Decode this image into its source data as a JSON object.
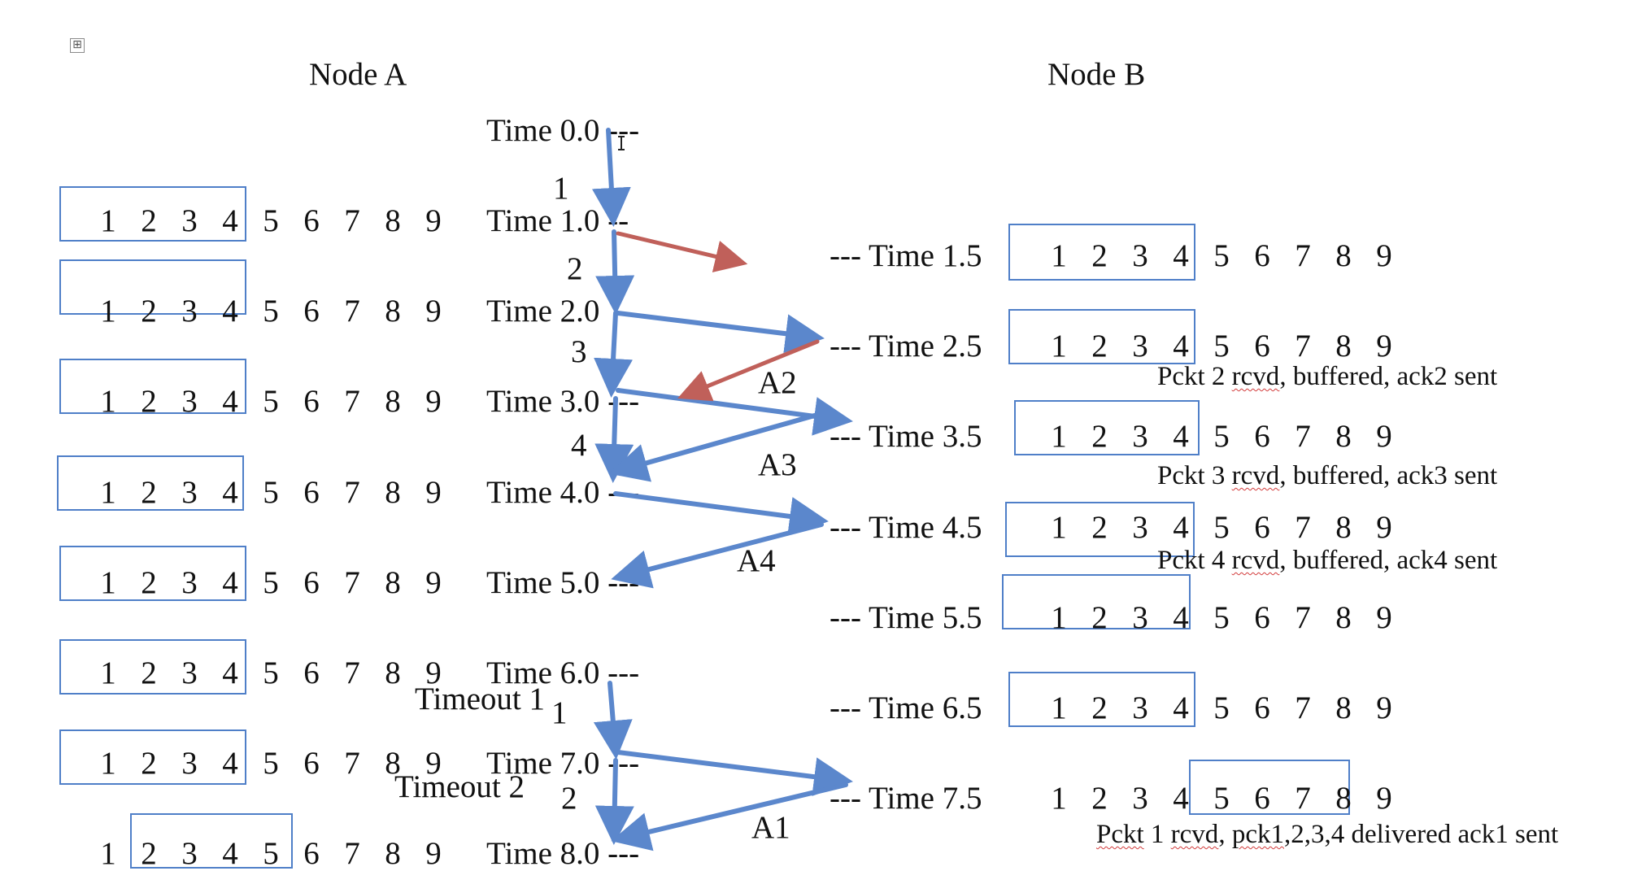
{
  "nodes": {
    "a": "Node A",
    "b": "Node B"
  },
  "expand_icon": "⊞",
  "numbers": [
    "1",
    "2",
    "3",
    "4",
    "5",
    "6",
    "7",
    "8",
    "9"
  ],
  "time_a": [
    "Time 0.0 ---",
    "Time 1.0 --",
    "Time 2.0",
    "Time 3.0 ---",
    "Time 4.0 ---",
    "Time 5.0 ---",
    "Time 6.0 ---",
    "Time 7.0 ---",
    "Time 8.0 ---"
  ],
  "time_b": [
    "--- Time 1.5",
    "--- Time 2.5",
    "--- Time 3.5",
    "--- Time 4.5",
    "--- Time 5.5",
    "--- Time 6.5",
    "--- Time 7.5"
  ],
  "packet_labels": [
    "1",
    "2",
    "3",
    "4",
    "1",
    "2"
  ],
  "ack_labels": [
    "A2",
    "A3",
    "A4",
    "A1"
  ],
  "timeouts": [
    "Timeout 1",
    "Timeout 2"
  ],
  "notes": {
    "n1_pre": "Pckt 2 ",
    "n1_s": "rcvd",
    "n1_post": ", buffered, ack2 sent",
    "n2_pre": "Pckt 3 ",
    "n2_s": "rcvd",
    "n2_post": ", buffered, ack3 sent",
    "n3_pre": "Pckt 4 ",
    "n3_s": "rcvd",
    "n3_post": ", buffered, ack4 sent",
    "n4_a": "Pckt",
    "n4_b": " 1 ",
    "n4_c": "rcvd",
    "n4_d": ", ",
    "n4_e": "pck1",
    "n4_f": ",2,3,4 delivered ack1 sent"
  },
  "colors": {
    "arrow_blue": "#5b87cc",
    "arrow_red": "#c0605a",
    "box": "#4f7fc8"
  }
}
